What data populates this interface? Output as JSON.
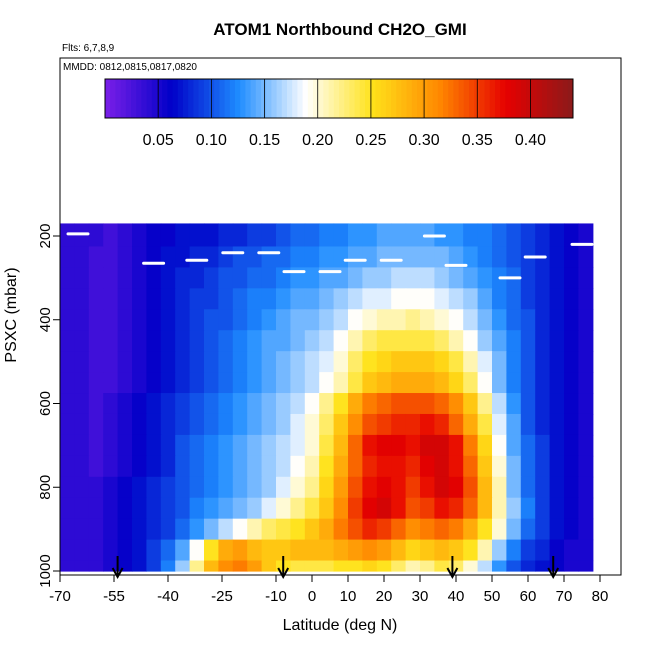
{
  "chart_data": {
    "type": "heatmap",
    "title": "ATOM1 Northbound CH2O_GMI",
    "subtitle_flights": "Flts: 6,7,8,9",
    "subtitle_dates": "MMDD: 0812,0815,0817,0820",
    "xlabel": "Latitude (deg N)",
    "ylabel": "PSXC (mbar)",
    "xlim": [
      -70,
      80
    ],
    "ylim": [
      1000,
      150
    ],
    "x_ticks": [
      -70,
      -55,
      -40,
      -25,
      -10,
      0,
      10,
      20,
      30,
      40,
      50,
      60,
      70,
      80
    ],
    "y_ticks": [
      200,
      400,
      600,
      800,
      1000
    ],
    "colorbar": {
      "vmin": 0.0,
      "vmax": 0.44,
      "ticks": [
        "0.05",
        "0.10",
        "0.15",
        "0.20",
        "0.25",
        "0.30",
        "0.35",
        "0.40"
      ],
      "tick_values": [
        0.05,
        0.1,
        0.15,
        0.2,
        0.25,
        0.3,
        0.35,
        0.4
      ],
      "colors": [
        "#7b1fe8",
        "#0000c8",
        "#1e8cff",
        "#ffffff",
        "#ffe21a",
        "#ff8800",
        "#e60000",
        "#8b1a1a"
      ]
    },
    "pressure_levels": [
      200,
      250,
      300,
      350,
      400,
      450,
      500,
      550,
      600,
      650,
      700,
      750,
      800,
      850,
      900,
      950,
      1000
    ],
    "lat_bins": [
      -68,
      -64,
      -60,
      -56,
      -52,
      -48,
      -44,
      -40,
      -36,
      -32,
      -28,
      -24,
      -20,
      -16,
      -12,
      -8,
      -4,
      0,
      4,
      8,
      12,
      16,
      20,
      24,
      28,
      32,
      36,
      40,
      44,
      48,
      52,
      56,
      60,
      64,
      68,
      72,
      76
    ],
    "values": [
      [
        0.04,
        0.04,
        0.04,
        0.03,
        0.04,
        0.05,
        0.06,
        0.06,
        0.07,
        0.07,
        0.07,
        0.08,
        0.08,
        0.09,
        0.09,
        0.1,
        0.11,
        0.11,
        0.12,
        0.12,
        0.13,
        0.13,
        0.14,
        0.14,
        0.14,
        0.14,
        0.13,
        0.13,
        0.12,
        0.12,
        0.11,
        0.1,
        0.09,
        0.08,
        0.07,
        0.06,
        0.05
      ],
      [
        0.04,
        0.04,
        0.03,
        0.03,
        0.04,
        0.05,
        0.06,
        0.07,
        0.07,
        0.08,
        0.08,
        0.09,
        0.1,
        0.1,
        0.11,
        0.11,
        0.12,
        0.12,
        0.13,
        0.13,
        0.14,
        0.14,
        0.15,
        0.15,
        0.15,
        0.15,
        0.15,
        0.14,
        0.13,
        0.12,
        0.11,
        0.1,
        0.09,
        0.08,
        0.07,
        0.06,
        0.05
      ],
      [
        0.04,
        0.04,
        0.03,
        0.03,
        0.04,
        0.05,
        0.06,
        0.07,
        0.08,
        0.08,
        0.09,
        0.1,
        0.1,
        0.11,
        0.11,
        0.12,
        0.13,
        0.13,
        0.14,
        0.14,
        0.15,
        0.16,
        0.16,
        0.17,
        0.17,
        0.17,
        0.16,
        0.15,
        0.14,
        0.13,
        0.12,
        0.11,
        0.09,
        0.08,
        0.07,
        0.06,
        0.05
      ],
      [
        0.04,
        0.04,
        0.03,
        0.03,
        0.04,
        0.05,
        0.06,
        0.07,
        0.08,
        0.09,
        0.09,
        0.1,
        0.11,
        0.12,
        0.12,
        0.13,
        0.14,
        0.14,
        0.15,
        0.16,
        0.17,
        0.18,
        0.18,
        0.19,
        0.19,
        0.19,
        0.18,
        0.17,
        0.16,
        0.14,
        0.12,
        0.11,
        0.09,
        0.08,
        0.07,
        0.06,
        0.05
      ],
      [
        0.04,
        0.04,
        0.03,
        0.03,
        0.04,
        0.05,
        0.06,
        0.07,
        0.08,
        0.09,
        0.1,
        0.1,
        0.11,
        0.12,
        0.13,
        0.14,
        0.15,
        0.15,
        0.16,
        0.17,
        0.19,
        0.2,
        0.21,
        0.21,
        0.22,
        0.21,
        0.2,
        0.19,
        0.17,
        0.15,
        0.13,
        0.11,
        0.1,
        0.08,
        0.07,
        0.06,
        0.05
      ],
      [
        0.04,
        0.04,
        0.03,
        0.03,
        0.04,
        0.05,
        0.06,
        0.07,
        0.08,
        0.09,
        0.1,
        0.11,
        0.12,
        0.13,
        0.14,
        0.14,
        0.15,
        0.16,
        0.17,
        0.19,
        0.21,
        0.23,
        0.24,
        0.24,
        0.24,
        0.24,
        0.23,
        0.21,
        0.19,
        0.16,
        0.14,
        0.12,
        0.1,
        0.08,
        0.07,
        0.06,
        0.05
      ],
      [
        0.04,
        0.04,
        0.03,
        0.03,
        0.04,
        0.05,
        0.06,
        0.07,
        0.08,
        0.09,
        0.1,
        0.11,
        0.12,
        0.13,
        0.14,
        0.15,
        0.16,
        0.17,
        0.18,
        0.2,
        0.23,
        0.25,
        0.26,
        0.27,
        0.27,
        0.27,
        0.26,
        0.24,
        0.21,
        0.18,
        0.15,
        0.12,
        0.1,
        0.08,
        0.07,
        0.06,
        0.05
      ],
      [
        0.04,
        0.04,
        0.03,
        0.03,
        0.04,
        0.05,
        0.06,
        0.07,
        0.08,
        0.09,
        0.1,
        0.11,
        0.12,
        0.13,
        0.14,
        0.15,
        0.16,
        0.17,
        0.19,
        0.21,
        0.24,
        0.27,
        0.28,
        0.29,
        0.29,
        0.29,
        0.28,
        0.26,
        0.23,
        0.19,
        0.15,
        0.12,
        0.1,
        0.08,
        0.07,
        0.06,
        0.05
      ],
      [
        0.04,
        0.04,
        0.03,
        0.04,
        0.05,
        0.06,
        0.07,
        0.08,
        0.09,
        0.1,
        0.11,
        0.12,
        0.13,
        0.14,
        0.15,
        0.16,
        0.17,
        0.19,
        0.22,
        0.25,
        0.29,
        0.32,
        0.33,
        0.34,
        0.34,
        0.34,
        0.33,
        0.31,
        0.27,
        0.22,
        0.17,
        0.13,
        0.1,
        0.08,
        0.07,
        0.06,
        0.05
      ],
      [
        0.04,
        0.04,
        0.03,
        0.04,
        0.05,
        0.06,
        0.07,
        0.08,
        0.09,
        0.1,
        0.11,
        0.12,
        0.13,
        0.14,
        0.15,
        0.16,
        0.18,
        0.2,
        0.23,
        0.27,
        0.31,
        0.34,
        0.35,
        0.36,
        0.36,
        0.37,
        0.36,
        0.33,
        0.29,
        0.24,
        0.18,
        0.14,
        0.1,
        0.08,
        0.07,
        0.06,
        0.05
      ],
      [
        0.04,
        0.04,
        0.03,
        0.04,
        0.05,
        0.06,
        0.07,
        0.08,
        0.1,
        0.11,
        0.12,
        0.13,
        0.14,
        0.15,
        0.16,
        0.17,
        0.18,
        0.2,
        0.24,
        0.28,
        0.33,
        0.37,
        0.38,
        0.38,
        0.37,
        0.39,
        0.39,
        0.37,
        0.32,
        0.26,
        0.19,
        0.14,
        0.11,
        0.09,
        0.07,
        0.06,
        0.05
      ],
      [
        0.04,
        0.04,
        0.03,
        0.04,
        0.05,
        0.06,
        0.07,
        0.08,
        0.1,
        0.11,
        0.12,
        0.13,
        0.14,
        0.15,
        0.16,
        0.17,
        0.19,
        0.21,
        0.25,
        0.29,
        0.33,
        0.36,
        0.37,
        0.37,
        0.36,
        0.38,
        0.39,
        0.37,
        0.33,
        0.27,
        0.2,
        0.15,
        0.11,
        0.09,
        0.07,
        0.06,
        0.05
      ],
      [
        0.04,
        0.04,
        0.04,
        0.05,
        0.06,
        0.07,
        0.08,
        0.09,
        0.1,
        0.11,
        0.12,
        0.13,
        0.14,
        0.15,
        0.16,
        0.18,
        0.2,
        0.22,
        0.26,
        0.3,
        0.34,
        0.37,
        0.38,
        0.37,
        0.35,
        0.37,
        0.39,
        0.38,
        0.34,
        0.28,
        0.21,
        0.15,
        0.11,
        0.09,
        0.07,
        0.06,
        0.05
      ],
      [
        0.04,
        0.04,
        0.04,
        0.05,
        0.06,
        0.07,
        0.08,
        0.09,
        0.1,
        0.12,
        0.13,
        0.14,
        0.15,
        0.16,
        0.18,
        0.2,
        0.22,
        0.24,
        0.27,
        0.31,
        0.35,
        0.38,
        0.39,
        0.37,
        0.34,
        0.35,
        0.37,
        0.36,
        0.33,
        0.28,
        0.21,
        0.16,
        0.12,
        0.09,
        0.07,
        0.06,
        0.05
      ],
      [
        0.04,
        0.04,
        0.04,
        0.05,
        0.06,
        0.07,
        0.08,
        0.09,
        0.11,
        0.13,
        0.15,
        0.17,
        0.19,
        0.21,
        0.23,
        0.24,
        0.25,
        0.27,
        0.29,
        0.32,
        0.34,
        0.36,
        0.35,
        0.33,
        0.31,
        0.32,
        0.33,
        0.32,
        0.29,
        0.25,
        0.2,
        0.15,
        0.11,
        0.09,
        0.07,
        0.06,
        0.05
      ],
      [
        0.04,
        0.04,
        0.04,
        0.05,
        0.06,
        0.07,
        0.09,
        0.11,
        0.14,
        0.19,
        0.25,
        0.29,
        0.3,
        0.28,
        0.27,
        0.27,
        0.28,
        0.28,
        0.28,
        0.29,
        0.3,
        0.31,
        0.3,
        0.28,
        0.26,
        0.27,
        0.28,
        0.27,
        0.25,
        0.21,
        0.16,
        0.12,
        0.09,
        0.08,
        0.06,
        0.05,
        0.05
      ],
      [
        0.04,
        0.04,
        0.04,
        0.05,
        0.06,
        0.07,
        0.09,
        0.12,
        0.16,
        0.22,
        0.28,
        0.31,
        0.32,
        0.3,
        0.27,
        0.25,
        0.24,
        0.24,
        0.24,
        0.25,
        0.25,
        0.26,
        0.25,
        0.23,
        0.21,
        0.22,
        0.24,
        0.23,
        0.2,
        0.17,
        0.13,
        0.1,
        0.08,
        0.07,
        0.06,
        0.05,
        0.05
      ]
    ],
    "flight_level_markers": [
      {
        "lat": -65,
        "p": 195
      },
      {
        "lat": -44,
        "p": 265
      },
      {
        "lat": -32,
        "p": 258
      },
      {
        "lat": -22,
        "p": 240
      },
      {
        "lat": -12,
        "p": 240
      },
      {
        "lat": -5,
        "p": 285
      },
      {
        "lat": 5,
        "p": 285
      },
      {
        "lat": 12,
        "p": 258
      },
      {
        "lat": 22,
        "p": 258
      },
      {
        "lat": 34,
        "p": 200
      },
      {
        "lat": 40,
        "p": 270
      },
      {
        "lat": 55,
        "p": 300
      },
      {
        "lat": 62,
        "p": 250
      },
      {
        "lat": 75,
        "p": 220
      }
    ],
    "arrow_latitudes": [
      -54,
      -8,
      39,
      67
    ]
  }
}
